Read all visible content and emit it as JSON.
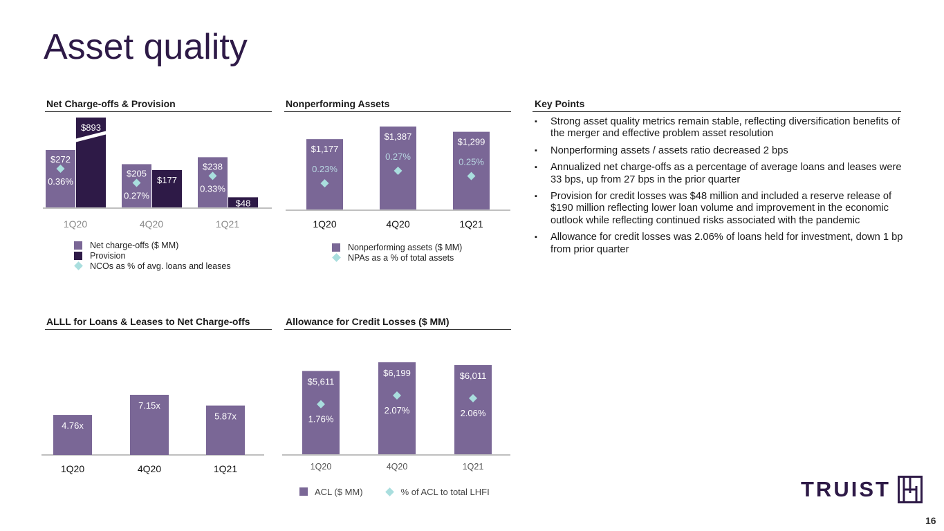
{
  "page": {
    "title": "Asset quality",
    "page_number": "16",
    "logo_text": "TRUIST",
    "colors": {
      "primary": "#7a6796",
      "dark": "#2e1a47",
      "teal": "#a9dede",
      "axis": "#bfbfbf"
    }
  },
  "key_points": {
    "title": "Key Points",
    "bullet": "▪",
    "items": [
      "Strong asset quality metrics remain stable, reflecting diversification benefits of the merger and effective problem asset resolution",
      "Nonperforming assets / assets ratio decreased 2 bps",
      "Annualized net charge-offs as a percentage of average loans and leases were 33 bps, up from 27 bps in the prior quarter",
      "Provision for credit losses was $48 million and included a reserve release of $190 million reflecting lower loan volume and improvement in the economic outlook while reflecting continued risks associated with the pandemic",
      "Allowance for credit losses was 2.06% of loans held for investment, down 1 bp from prior quarter"
    ]
  },
  "chart_data": [
    {
      "id": "nco",
      "type": "bar",
      "title": "Net Charge-offs & Provision",
      "categories": [
        "1Q20",
        "4Q20",
        "1Q21"
      ],
      "series": [
        {
          "name": "Net charge-offs ($ MM)",
          "values": [
            272,
            205,
            238
          ],
          "labels": [
            "$272",
            "$205",
            "$238"
          ],
          "color": "#7a6796"
        },
        {
          "name": "Provision",
          "values": [
            893,
            177,
            48
          ],
          "labels": [
            "$893",
            "$177",
            "$48"
          ],
          "color": "#2e1a47",
          "axis_break": [
            true,
            false,
            false
          ]
        },
        {
          "name": "NCOs as % of avg. loans and leases",
          "type": "marker",
          "values": [
            0.36,
            0.27,
            0.33
          ],
          "labels": [
            "0.36%",
            "0.27%",
            "0.33%"
          ],
          "color": "#a9dede"
        }
      ],
      "legend_position": "bottom-left"
    },
    {
      "id": "npa",
      "type": "bar",
      "title": "Nonperforming Assets",
      "categories": [
        "1Q20",
        "4Q20",
        "1Q21"
      ],
      "series": [
        {
          "name": "Nonperforming assets ($ MM)",
          "values": [
            1177,
            1387,
            1299
          ],
          "labels": [
            "$1,177",
            "$1,387",
            "$1,299"
          ],
          "color": "#7a6796"
        },
        {
          "name": "NPAs as a % of total assets",
          "type": "marker",
          "values": [
            0.23,
            0.27,
            0.25
          ],
          "labels": [
            "0.23%",
            "0.27%",
            "0.25%"
          ],
          "color": "#a9dede"
        }
      ],
      "legend_position": "bottom"
    },
    {
      "id": "alll",
      "type": "bar",
      "title": "ALLL for Loans & Leases to Net Charge-offs",
      "categories": [
        "1Q20",
        "4Q20",
        "1Q21"
      ],
      "series": [
        {
          "name": "ALLL to NCOs",
          "values": [
            4.76,
            7.15,
            5.87
          ],
          "labels": [
            "4.76x",
            "7.15x",
            "5.87x"
          ],
          "color": "#7a6796"
        }
      ]
    },
    {
      "id": "acl",
      "type": "bar",
      "title": "Allowance for Credit Losses ($ MM)",
      "categories": [
        "1Q20",
        "4Q20",
        "1Q21"
      ],
      "series": [
        {
          "name": "ACL ($ MM)",
          "values": [
            5611,
            6199,
            6011
          ],
          "labels": [
            "$5,611",
            "$6,199",
            "$6,011"
          ],
          "color": "#7a6796"
        },
        {
          "name": "% of ACL to total LHFI",
          "type": "marker",
          "values": [
            1.76,
            2.07,
            2.06
          ],
          "labels": [
            "1.76%",
            "2.07%",
            "2.06%"
          ],
          "color": "#a9dede"
        }
      ],
      "legend_position": "bottom"
    }
  ]
}
